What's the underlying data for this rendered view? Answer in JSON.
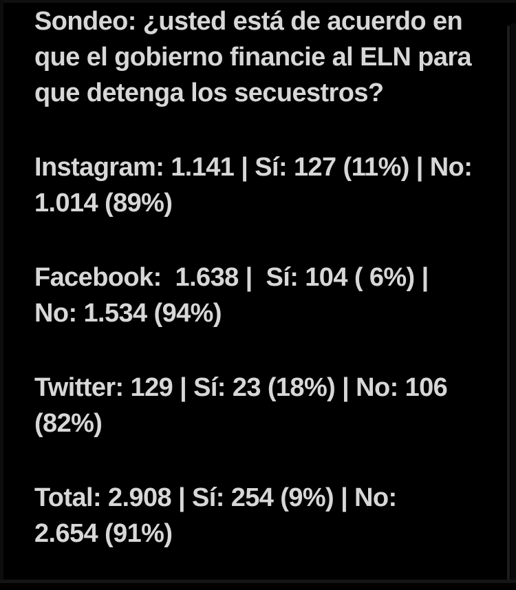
{
  "post": {
    "title": "Sondeo: ¿usted está de acuerdo en\nque el gobierno financie al ELN para\nque detenga los secuestros?",
    "results": [
      {
        "platform": "Instagram",
        "display": "Instagram: 1.141 | Sí: 127 (11%) | No:\n1.014 (89%)",
        "responses": "1.141",
        "yes": "127",
        "yes_pct": "11%",
        "no": "1.014",
        "no_pct": "89%"
      },
      {
        "platform": "Facebook",
        "display": "Facebook:  1.638 |  Sí: 104 ( 6%) |\nNo: 1.534 (94%)",
        "responses": "1.638",
        "yes": "104",
        "yes_pct": "6%",
        "no": "1.534",
        "no_pct": "94%"
      },
      {
        "platform": "Twitter",
        "display": "Twitter: 129 | Sí: 23 (18%) | No: 106\n(82%)",
        "responses": "129",
        "yes": "23",
        "yes_pct": "18%",
        "no": "106",
        "no_pct": "82%"
      },
      {
        "platform": "Total",
        "display": "Total: 2.908 | Sí: 254 (9%) | No:\n2.654 (91%)",
        "responses": "2.908",
        "yes": "254",
        "yes_pct": "9%",
        "no": "2.654",
        "no_pct": "91%"
      }
    ]
  },
  "colors": {
    "background": "#000000",
    "text": "#d7d7d7",
    "edge_line": "#1d1d1d",
    "edge_top": "#101010",
    "edge_bottom": "#151515",
    "edge_left": "#0d0d0d",
    "edge_right_fill": "#0a0a0a"
  }
}
